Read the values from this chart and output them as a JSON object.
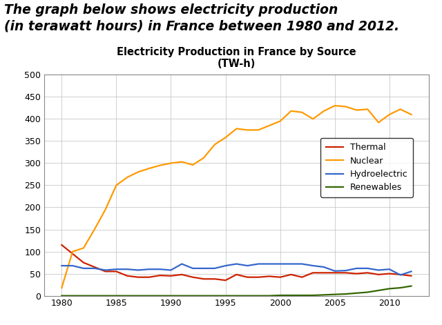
{
  "title_line1": "Electricity Production in France by Source",
  "title_line2": "(TW-h)",
  "header_text": "The graph below shows electricity production\n(in terawatt hours) in France between 1980 and 2012.",
  "years": [
    1980,
    1981,
    1982,
    1983,
    1984,
    1985,
    1986,
    1987,
    1988,
    1989,
    1990,
    1991,
    1992,
    1993,
    1994,
    1995,
    1996,
    1997,
    1998,
    1999,
    2000,
    2001,
    2002,
    2003,
    2004,
    2005,
    2006,
    2007,
    2008,
    2009,
    2010,
    2011,
    2012
  ],
  "thermal": [
    115,
    95,
    75,
    65,
    55,
    55,
    45,
    42,
    42,
    46,
    45,
    48,
    42,
    38,
    38,
    35,
    48,
    42,
    42,
    44,
    42,
    48,
    42,
    52,
    52,
    52,
    52,
    50,
    52,
    48,
    50,
    48,
    45
  ],
  "nuclear": [
    18,
    100,
    108,
    150,
    195,
    250,
    268,
    280,
    288,
    295,
    300,
    303,
    296,
    312,
    342,
    358,
    378,
    375,
    375,
    385,
    395,
    418,
    415,
    400,
    418,
    430,
    428,
    420,
    422,
    392,
    410,
    422,
    410
  ],
  "hydro": [
    68,
    68,
    62,
    62,
    58,
    60,
    60,
    58,
    60,
    60,
    58,
    72,
    62,
    62,
    62,
    68,
    72,
    68,
    72,
    72,
    72,
    72,
    72,
    68,
    65,
    56,
    57,
    62,
    62,
    58,
    60,
    47,
    55
  ],
  "renewables": [
    0,
    0,
    0,
    0,
    0,
    0,
    0,
    0,
    0,
    0,
    0,
    0,
    0,
    0,
    0,
    0,
    0,
    0,
    0,
    0,
    1,
    1,
    1,
    1,
    2,
    3,
    4,
    6,
    8,
    12,
    16,
    18,
    22
  ],
  "thermal_color": "#cc2200",
  "nuclear_color": "#ff9900",
  "hydro_color": "#3366cc",
  "renewables_color": "#336600",
  "background_color": "#ffffff",
  "plot_bg_color": "#ffffff",
  "grid_color": "#bbbbbb",
  "ylim": [
    0,
    500
  ],
  "yticks": [
    0,
    50,
    100,
    150,
    200,
    250,
    300,
    350,
    400,
    450,
    500
  ],
  "xticks": [
    1980,
    1985,
    1990,
    1995,
    2000,
    2005,
    2010
  ],
  "legend_labels": [
    "Thermal",
    "Nuclear",
    "Hydroelectric",
    "Renewables"
  ]
}
